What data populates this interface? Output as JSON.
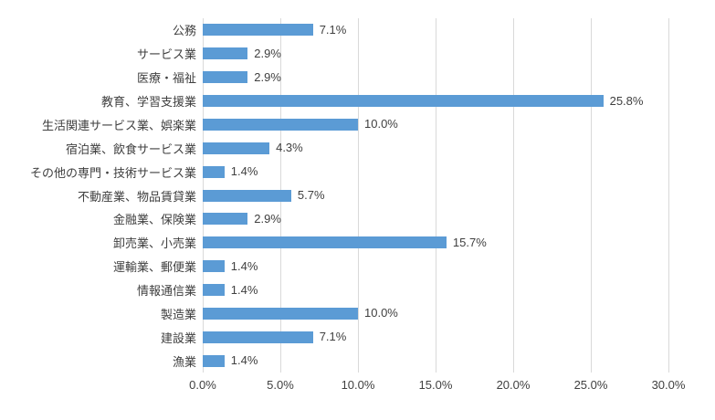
{
  "chart_data": {
    "type": "bar",
    "orientation": "horizontal",
    "title": "",
    "xlabel": "",
    "ylabel": "",
    "categories": [
      "公務",
      "サービス業",
      "医療・福祉",
      "教育、学習支援業",
      "生活関連サービス業、娯楽業",
      "宿泊業、飲食サービス業",
      "その他の専門・技術サービス業",
      "不動産業、物品賃貸業",
      "金融業、保険業",
      "卸売業、小売業",
      "運輸業、郵便業",
      "情報通信業",
      "製造業",
      "建設業",
      "漁業"
    ],
    "values": [
      7.1,
      2.9,
      2.9,
      25.8,
      10.0,
      4.3,
      1.4,
      5.7,
      2.9,
      15.7,
      1.4,
      1.4,
      10.0,
      7.1,
      1.4
    ],
    "value_labels": [
      "7.1%",
      "2.9%",
      "2.9%",
      "25.8%",
      "10.0%",
      "4.3%",
      "1.4%",
      "5.7%",
      "2.9%",
      "15.7%",
      "1.4%",
      "1.4%",
      "10.0%",
      "7.1%",
      "1.4%"
    ],
    "x_ticks": [
      "0.0%",
      "5.0%",
      "10.0%",
      "15.0%",
      "20.0%",
      "25.0%",
      "30.0%"
    ],
    "x_tick_values": [
      0,
      5,
      10,
      15,
      20,
      25,
      30
    ],
    "xlim": [
      0,
      30
    ],
    "grid": true,
    "legend": false,
    "bar_color": "#5b9bd5",
    "gridline_color": "#d9d9d9",
    "text_color": "#404040",
    "background_color": "#ffffff"
  }
}
